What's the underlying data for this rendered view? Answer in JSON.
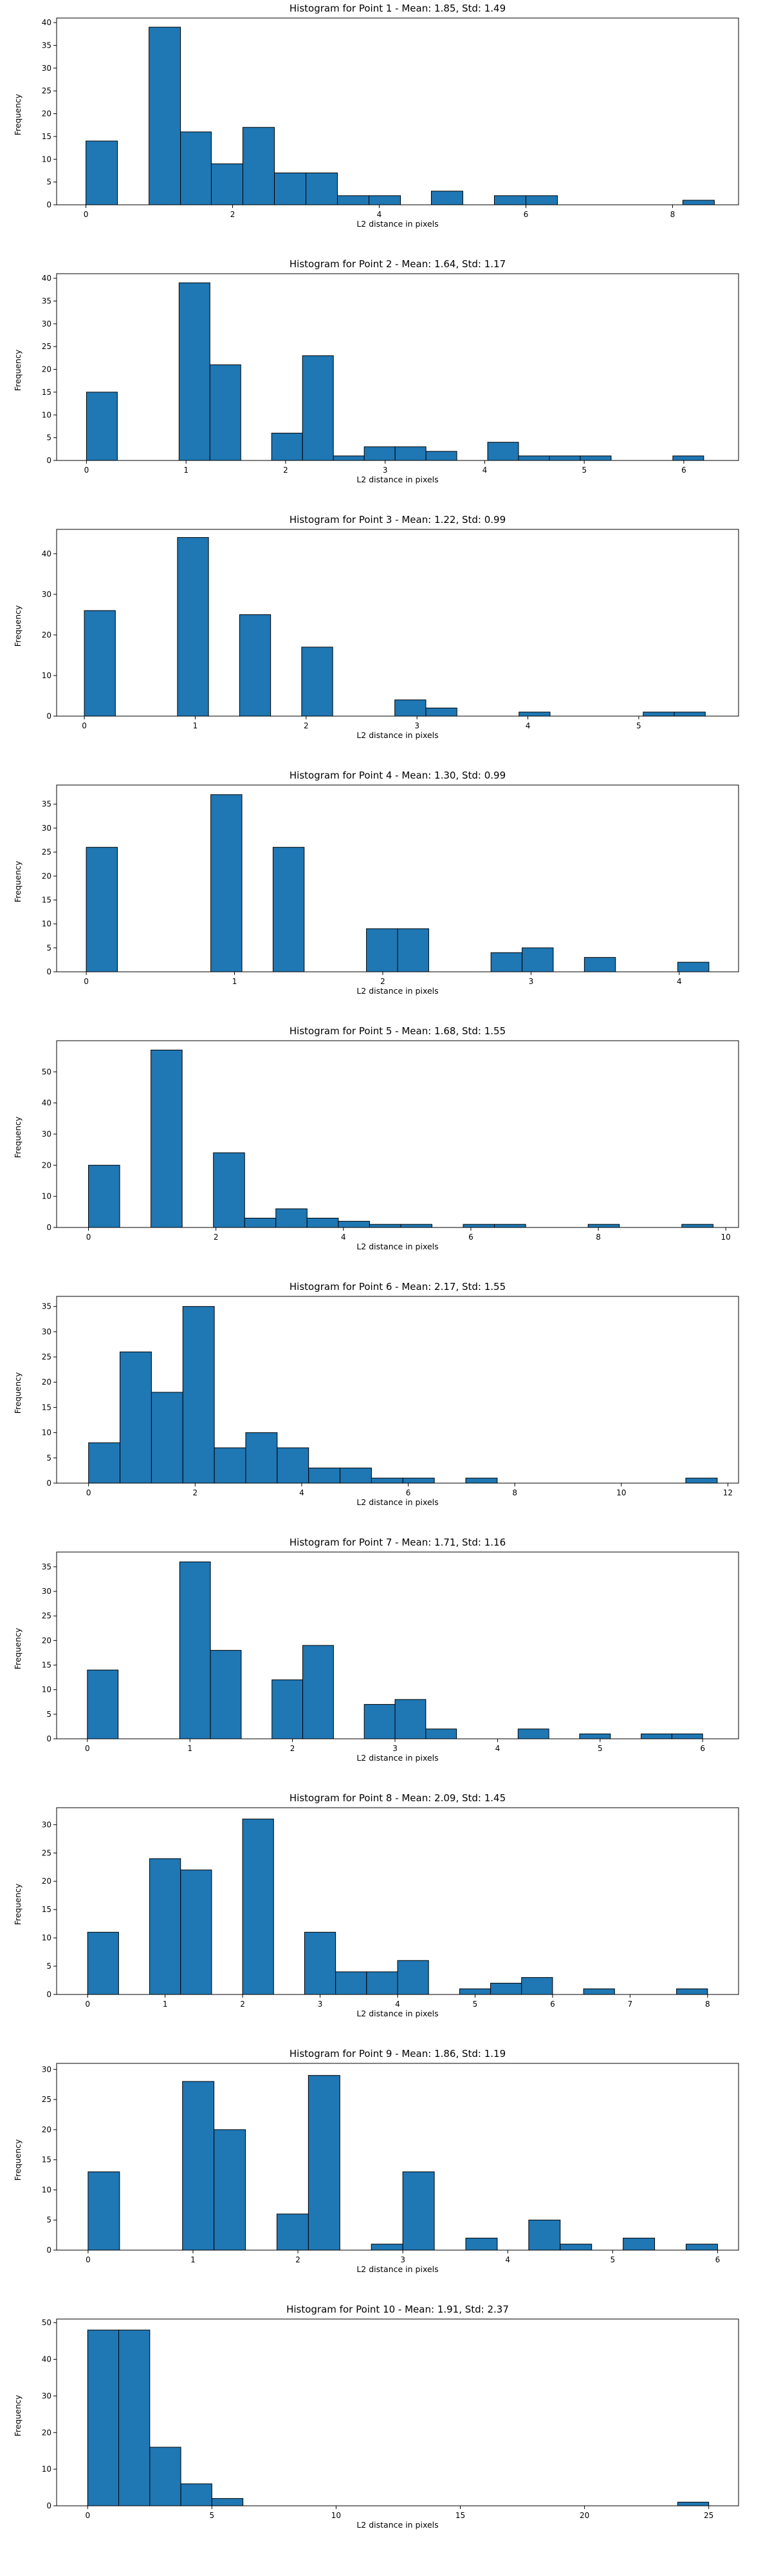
{
  "chart_data": [
    {
      "type": "bar",
      "title": "Histogram for Point 1 - Mean: 1.85, Std: 1.49",
      "xlabel": "L2 distance in pixels",
      "ylabel": "Frequency",
      "xlim": [
        -0.4,
        8.9
      ],
      "ylim": [
        0,
        41
      ],
      "xticks": [
        0,
        2,
        4,
        6,
        8
      ],
      "yticks": [
        0,
        5,
        10,
        15,
        20,
        25,
        30,
        35,
        40
      ],
      "bins": [
        [
          0,
          0.43,
          14
        ],
        [
          0.86,
          1.29,
          39
        ],
        [
          1.29,
          1.71,
          16
        ],
        [
          1.71,
          2.14,
          9
        ],
        [
          2.14,
          2.57,
          17
        ],
        [
          2.57,
          3.0,
          7
        ],
        [
          3.0,
          3.43,
          7
        ],
        [
          3.43,
          3.86,
          2
        ],
        [
          3.86,
          4.29,
          2
        ],
        [
          4.71,
          5.14,
          3
        ],
        [
          5.57,
          6.0,
          2
        ],
        [
          6.0,
          6.43,
          2
        ],
        [
          8.14,
          8.57,
          1
        ]
      ]
    },
    {
      "type": "bar",
      "title": "Histogram for Point 2 - Mean: 1.64, Std: 1.17",
      "xlabel": "L2 distance in pixels",
      "ylabel": "Frequency",
      "xlim": [
        -0.3,
        6.55
      ],
      "ylim": [
        0,
        41
      ],
      "xticks": [
        0,
        1,
        2,
        3,
        4,
        5,
        6
      ],
      "yticks": [
        0,
        5,
        10,
        15,
        20,
        25,
        30,
        35,
        40
      ],
      "bins": [
        [
          0,
          0.31,
          15
        ],
        [
          0.93,
          1.24,
          39
        ],
        [
          1.24,
          1.55,
          21
        ],
        [
          1.86,
          2.17,
          6
        ],
        [
          2.17,
          2.48,
          23
        ],
        [
          2.48,
          2.79,
          1
        ],
        [
          2.79,
          3.1,
          3
        ],
        [
          3.1,
          3.41,
          3
        ],
        [
          3.41,
          3.72,
          2
        ],
        [
          4.03,
          4.34,
          4
        ],
        [
          4.34,
          4.65,
          1
        ],
        [
          4.65,
          4.96,
          1
        ],
        [
          4.96,
          5.27,
          1
        ],
        [
          5.89,
          6.2,
          1
        ]
      ]
    },
    {
      "type": "bar",
      "title": "Histogram for Point 3 - Mean: 1.22, Std: 0.99",
      "xlabel": "L2 distance in pixels",
      "ylabel": "Frequency",
      "xlim": [
        -0.25,
        5.9
      ],
      "ylim": [
        0,
        46
      ],
      "xticks": [
        0,
        1,
        2,
        3,
        4,
        5
      ],
      "yticks": [
        0,
        10,
        20,
        30,
        40
      ],
      "bins": [
        [
          0,
          0.28,
          26
        ],
        [
          0.84,
          1.12,
          44
        ],
        [
          1.4,
          1.68,
          25
        ],
        [
          1.96,
          2.24,
          17
        ],
        [
          2.8,
          3.08,
          4
        ],
        [
          3.08,
          3.36,
          2
        ],
        [
          3.92,
          4.2,
          1
        ],
        [
          5.04,
          5.32,
          1
        ],
        [
          5.32,
          5.6,
          1
        ]
      ]
    },
    {
      "type": "bar",
      "title": "Histogram for Point 4 - Mean: 1.30, Std: 0.99",
      "xlabel": "L2 distance in pixels",
      "ylabel": "Frequency",
      "xlim": [
        -0.2,
        4.4
      ],
      "ylim": [
        0,
        39
      ],
      "xticks": [
        0,
        1,
        2,
        3,
        4
      ],
      "yticks": [
        0,
        5,
        10,
        15,
        20,
        25,
        30,
        35
      ],
      "bins": [
        [
          0,
          0.21,
          26
        ],
        [
          0.84,
          1.05,
          37
        ],
        [
          1.26,
          1.47,
          26
        ],
        [
          1.89,
          2.1,
          9
        ],
        [
          2.1,
          2.31,
          9
        ],
        [
          2.73,
          2.94,
          4
        ],
        [
          2.94,
          3.15,
          5
        ],
        [
          3.36,
          3.57,
          3
        ],
        [
          3.99,
          4.2,
          2
        ]
      ]
    },
    {
      "type": "bar",
      "title": "Histogram for Point 5 - Mean: 1.68, Std: 1.55",
      "xlabel": "L2 distance in pixels",
      "ylabel": "Frequency",
      "xlim": [
        -0.5,
        10.2
      ],
      "ylim": [
        0,
        60
      ],
      "xticks": [
        0,
        2,
        4,
        6,
        8,
        10
      ],
      "yticks": [
        0,
        10,
        20,
        30,
        40,
        50
      ],
      "bins": [
        [
          0,
          0.49,
          20
        ],
        [
          0.98,
          1.47,
          57
        ],
        [
          1.96,
          2.45,
          24
        ],
        [
          2.45,
          2.94,
          3
        ],
        [
          2.94,
          3.43,
          6
        ],
        [
          3.43,
          3.92,
          3
        ],
        [
          3.92,
          4.41,
          2
        ],
        [
          4.41,
          4.9,
          1
        ],
        [
          4.9,
          5.39,
          1
        ],
        [
          5.88,
          6.37,
          1
        ],
        [
          6.37,
          6.86,
          1
        ],
        [
          7.84,
          8.33,
          1
        ],
        [
          9.31,
          9.8,
          1
        ]
      ]
    },
    {
      "type": "bar",
      "title": "Histogram for Point 6 - Mean: 2.17, Std: 1.55",
      "xlabel": "L2 distance in pixels",
      "ylabel": "Frequency",
      "xlim": [
        -0.6,
        12.2
      ],
      "ylim": [
        0,
        37
      ],
      "xticks": [
        0,
        2,
        4,
        6,
        8,
        10,
        12
      ],
      "yticks": [
        0,
        5,
        10,
        15,
        20,
        25,
        30,
        35
      ],
      "bins": [
        [
          0,
          0.59,
          8
        ],
        [
          0.59,
          1.18,
          26
        ],
        [
          1.18,
          1.77,
          18
        ],
        [
          1.77,
          2.36,
          35
        ],
        [
          2.36,
          2.95,
          7
        ],
        [
          2.95,
          3.54,
          10
        ],
        [
          3.54,
          4.13,
          7
        ],
        [
          4.13,
          4.72,
          3
        ],
        [
          4.72,
          5.31,
          3
        ],
        [
          5.31,
          5.9,
          1
        ],
        [
          5.9,
          6.49,
          1
        ],
        [
          7.08,
          7.67,
          1
        ],
        [
          11.21,
          11.8,
          1
        ]
      ]
    },
    {
      "type": "bar",
      "title": "Histogram for Point 7 - Mean: 1.71, Std: 1.16",
      "xlabel": "L2 distance in pixels",
      "ylabel": "Frequency",
      "xlim": [
        -0.3,
        6.35
      ],
      "ylim": [
        0,
        38
      ],
      "xticks": [
        0,
        1,
        2,
        3,
        4,
        5,
        6
      ],
      "yticks": [
        0,
        5,
        10,
        15,
        20,
        25,
        30,
        35
      ],
      "bins": [
        [
          0,
          0.3,
          14
        ],
        [
          0.9,
          1.2,
          36
        ],
        [
          1.2,
          1.5,
          18
        ],
        [
          1.8,
          2.1,
          12
        ],
        [
          2.1,
          2.4,
          19
        ],
        [
          2.7,
          3.0,
          7
        ],
        [
          3.0,
          3.3,
          8
        ],
        [
          3.3,
          3.6,
          2
        ],
        [
          4.2,
          4.5,
          2
        ],
        [
          4.8,
          5.1,
          1
        ],
        [
          5.4,
          5.7,
          1
        ],
        [
          5.7,
          6.0,
          1
        ]
      ]
    },
    {
      "type": "bar",
      "title": "Histogram for Point 8 - Mean: 2.09, Std: 1.45",
      "xlabel": "L2 distance in pixels",
      "ylabel": "Frequency",
      "xlim": [
        -0.4,
        8.4
      ],
      "ylim": [
        0,
        33
      ],
      "xticks": [
        0,
        1,
        2,
        3,
        4,
        5,
        6,
        7,
        8
      ],
      "yticks": [
        0,
        5,
        10,
        15,
        20,
        25,
        30
      ],
      "bins": [
        [
          0,
          0.4,
          11
        ],
        [
          0.8,
          1.2,
          24
        ],
        [
          1.2,
          1.6,
          22
        ],
        [
          2.0,
          2.4,
          31
        ],
        [
          2.8,
          3.2,
          11
        ],
        [
          3.2,
          3.6,
          4
        ],
        [
          3.6,
          4.0,
          4
        ],
        [
          4.0,
          4.4,
          6
        ],
        [
          4.8,
          5.2,
          1
        ],
        [
          5.2,
          5.6,
          2
        ],
        [
          5.6,
          6.0,
          3
        ],
        [
          6.4,
          6.8,
          1
        ],
        [
          7.6,
          8.0,
          1
        ]
      ]
    },
    {
      "type": "bar",
      "title": "Histogram for Point 9 - Mean: 1.86, Std: 1.19",
      "xlabel": "L2 distance in pixels",
      "ylabel": "Frequency",
      "xlim": [
        -0.3,
        6.2
      ],
      "ylim": [
        0,
        31
      ],
      "xticks": [
        0,
        1,
        2,
        3,
        4,
        5,
        6
      ],
      "yticks": [
        0,
        5,
        10,
        15,
        20,
        25,
        30
      ],
      "bins": [
        [
          0,
          0.3,
          13
        ],
        [
          0.9,
          1.2,
          28
        ],
        [
          1.2,
          1.5,
          20
        ],
        [
          1.8,
          2.1,
          6
        ],
        [
          2.1,
          2.4,
          29
        ],
        [
          2.7,
          3.0,
          1
        ],
        [
          3.0,
          3.3,
          13
        ],
        [
          3.6,
          3.9,
          2
        ],
        [
          3.9,
          4.2,
          0
        ],
        [
          4.2,
          4.5,
          5
        ],
        [
          4.5,
          4.8,
          1
        ],
        [
          5.1,
          5.4,
          2
        ],
        [
          5.7,
          6.0,
          1
        ]
      ]
    },
    {
      "type": "bar",
      "title": "Histogram for Point 10 - Mean: 1.91, Std: 2.37",
      "xlabel": "L2 distance in pixels",
      "ylabel": "Frequency",
      "xlim": [
        -1.25,
        26.2
      ],
      "ylim": [
        0,
        51
      ],
      "xticks": [
        0,
        5,
        10,
        15,
        20,
        25
      ],
      "yticks": [
        0,
        10,
        20,
        30,
        40,
        50
      ],
      "bins": [
        [
          0,
          1.25,
          48
        ],
        [
          1.25,
          2.5,
          48
        ],
        [
          2.5,
          3.75,
          16
        ],
        [
          3.75,
          5.0,
          6
        ],
        [
          5.0,
          6.25,
          2
        ],
        [
          23.75,
          25.0,
          1
        ]
      ]
    }
  ]
}
